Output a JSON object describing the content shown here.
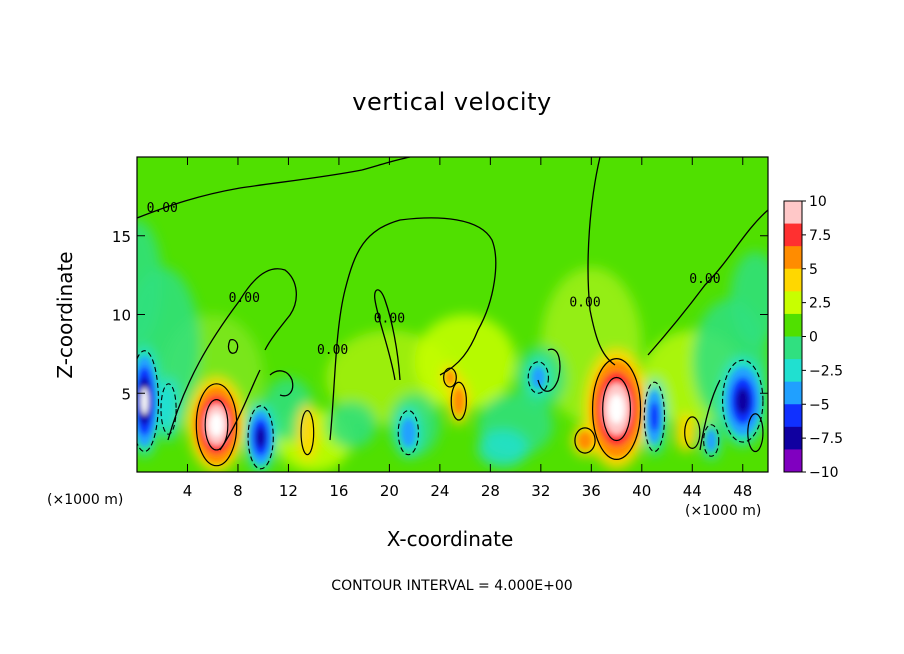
{
  "chart_data": {
    "type": "heatmap",
    "title": "vertical velocity",
    "xlabel": "X-coordinate",
    "ylabel": "Z-coordinate",
    "x_unit": "(×1000 m)",
    "x_unit_right": "(×1000 m)",
    "x_ticks": [
      4,
      8,
      12,
      16,
      20,
      24,
      28,
      32,
      36,
      40,
      44,
      48
    ],
    "y_ticks": [
      5,
      10,
      15
    ],
    "xlim": [
      0,
      50
    ],
    "ylim": [
      0,
      20
    ],
    "contour_interval_text": "CONTOUR INTERVAL = 4.000E+00",
    "contour_labels": [
      {
        "text": "0.00",
        "x": 2,
        "z": 16.5
      },
      {
        "text": "0.00",
        "x": 8.5,
        "z": 10.8
      },
      {
        "text": "0.00",
        "x": 15.5,
        "z": 7.5
      },
      {
        "text": "0.00",
        "x": 20,
        "z": 9.5
      },
      {
        "text": "0.00",
        "x": 35.5,
        "z": 10.5
      },
      {
        "text": "0.00",
        "x": 45,
        "z": 12
      }
    ],
    "colorbar": {
      "ticks": [
        "10",
        "7.5",
        "5",
        "2.5",
        "0",
        "−2.5",
        "−5",
        "−7.5",
        "−10"
      ],
      "colors": [
        "#ffc8c8",
        "#ff3030",
        "#ff8c00",
        "#ffd700",
        "#c8ff00",
        "#50e000",
        "#30e080",
        "#20e0d0",
        "#20a0ff",
        "#1030ff",
        "#1000a0",
        "#8000c0"
      ],
      "range": [
        -10,
        10
      ]
    },
    "features": [
      {
        "type": "updraft",
        "x": 6.3,
        "z": 3.0,
        "peak": 10
      },
      {
        "type": "updraft",
        "x": 38.0,
        "z": 4.0,
        "peak": 10
      },
      {
        "type": "updraft",
        "x": 35.5,
        "z": 2.0,
        "peak": 5
      },
      {
        "type": "updraft",
        "x": 25.5,
        "z": 4.5,
        "peak": 5
      },
      {
        "type": "updraft",
        "x": 24.8,
        "z": 6.0,
        "peak": 5
      },
      {
        "type": "downdraft",
        "x": 0.6,
        "z": 4.5,
        "peak": -10
      },
      {
        "type": "downdraft",
        "x": 9.8,
        "z": 2.2,
        "peak": -7.5
      },
      {
        "type": "downdraft",
        "x": 48.0,
        "z": 4.5,
        "peak": -7.5
      },
      {
        "type": "downdraft",
        "x": 41.0,
        "z": 3.5,
        "peak": -7.5
      },
      {
        "type": "downdraft",
        "x": 31.8,
        "z": 6.0,
        "peak": -5
      }
    ]
  }
}
